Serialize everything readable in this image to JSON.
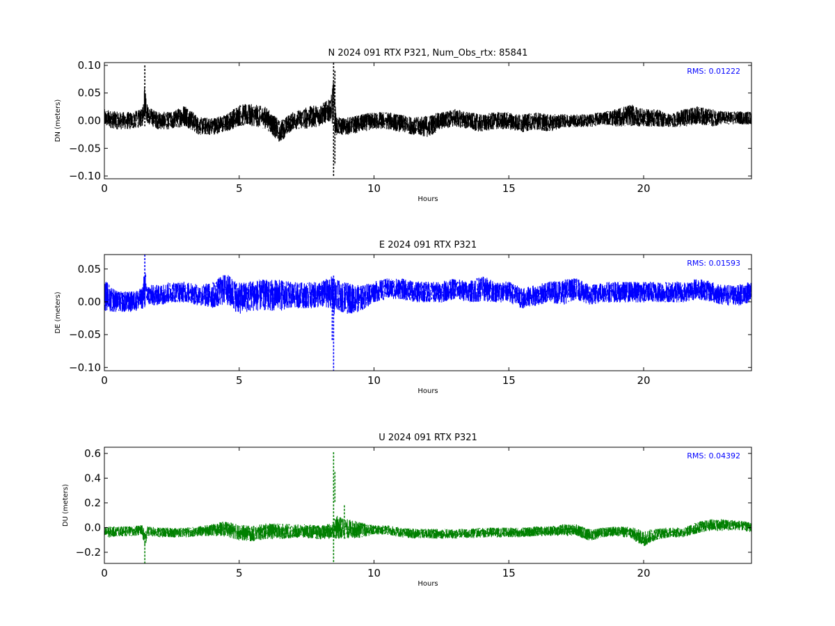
{
  "chart_data": [
    {
      "type": "line",
      "title": "N 2024 091 RTX  P321, Num_Obs_rtx: 85841",
      "xlabel": "Hours",
      "ylabel": "DN (meters)",
      "xlim": [
        0,
        24
      ],
      "ylim": [
        -0.105,
        0.105
      ],
      "xticks": [
        0,
        5,
        10,
        15,
        20
      ],
      "xtick_labels": [
        "0",
        "5",
        "10",
        "15",
        "20"
      ],
      "yticks": [
        -0.1,
        -0.05,
        0.0,
        0.05,
        0.1
      ],
      "ytick_labels": [
        "−0.10",
        "−0.05",
        "0.00",
        "0.05",
        "0.10"
      ],
      "color": "#000000",
      "rms_text": "RMS:  0.01222",
      "rms_color": "#0000ff",
      "grid": false,
      "series": [
        {
          "x": [
            0,
            0.5,
            1.0,
            1.4,
            1.5,
            1.6,
            2.0,
            2.5,
            3.0,
            3.5,
            4.0,
            4.5,
            5.0,
            5.5,
            6.0,
            6.5,
            7.0,
            7.5,
            8.0,
            8.4,
            8.5,
            8.6,
            9.0,
            9.5,
            10.0,
            10.5,
            11.0,
            11.5,
            12.0,
            12.5,
            13.0,
            13.5,
            14.0,
            14.5,
            15.0,
            15.5,
            16.0,
            16.5,
            17.0,
            17.5,
            18.0,
            18.5,
            19.0,
            19.5,
            20.0,
            20.5,
            21.0,
            21.5,
            22.0,
            22.5,
            23.0,
            23.5,
            24.0
          ],
          "y": [
            0.005,
            0.0,
            0.0,
            0.005,
            0.04,
            0.01,
            0.0,
            0.0,
            0.01,
            -0.01,
            -0.01,
            -0.005,
            0.01,
            0.01,
            0.005,
            -0.02,
            0.0,
            0.005,
            0.01,
            0.02,
            0.03,
            -0.01,
            -0.01,
            -0.005,
            0.0,
            0.0,
            -0.005,
            -0.01,
            -0.01,
            0.0,
            0.005,
            0.0,
            -0.005,
            0.0,
            0.0,
            -0.005,
            0.0,
            -0.005,
            0.0,
            0.0,
            0.0,
            0.005,
            0.005,
            0.01,
            0.005,
            0.005,
            0.0,
            0.005,
            0.01,
            0.005,
            0.005,
            0.005,
            0.005
          ],
          "spread": [
            0.02,
            0.02,
            0.02,
            0.02,
            0.04,
            0.02,
            0.02,
            0.02,
            0.025,
            0.02,
            0.02,
            0.02,
            0.025,
            0.025,
            0.025,
            0.025,
            0.02,
            0.025,
            0.025,
            0.025,
            0.06,
            0.02,
            0.02,
            0.02,
            0.02,
            0.02,
            0.02,
            0.02,
            0.025,
            0.02,
            0.02,
            0.02,
            0.02,
            0.02,
            0.02,
            0.02,
            0.02,
            0.02,
            0.015,
            0.015,
            0.015,
            0.015,
            0.02,
            0.025,
            0.02,
            0.02,
            0.015,
            0.02,
            0.02,
            0.02,
            0.015,
            0.015,
            0.015
          ],
          "spikes": [
            {
              "x": 1.5,
              "min": -0.01,
              "max": 0.1
            },
            {
              "x": 8.5,
              "min": -0.1,
              "max": 0.105
            },
            {
              "x": 8.55,
              "min": -0.08,
              "max": 0.09
            }
          ]
        }
      ]
    },
    {
      "type": "line",
      "title": "E 2024 091 RTX  P321",
      "xlabel": "Hours",
      "ylabel": "DE (meters)",
      "xlim": [
        0,
        24
      ],
      "ylim": [
        -0.105,
        0.072
      ],
      "xticks": [
        0,
        5,
        10,
        15,
        20
      ],
      "xtick_labels": [
        "0",
        "5",
        "10",
        "15",
        "20"
      ],
      "yticks": [
        -0.1,
        -0.05,
        0.0,
        0.05
      ],
      "ytick_labels": [
        "−0.10",
        "−0.05",
        "0.00",
        "0.05"
      ],
      "color": "#0000ff",
      "rms_text": "RMS:  0.01593",
      "rms_color": "#0000ff",
      "grid": false,
      "series": [
        {
          "x": [
            0,
            0.5,
            1.0,
            1.4,
            1.5,
            1.6,
            2.0,
            2.5,
            3.0,
            3.5,
            4.0,
            4.5,
            5.0,
            5.5,
            6.0,
            6.5,
            7.0,
            7.5,
            8.0,
            8.4,
            8.5,
            8.6,
            9.0,
            9.5,
            10.0,
            10.5,
            11.0,
            11.5,
            12.0,
            12.5,
            13.0,
            13.5,
            14.0,
            14.5,
            15.0,
            15.5,
            16.0,
            16.5,
            17.0,
            17.5,
            18.0,
            18.5,
            19.0,
            19.5,
            20.0,
            20.5,
            21.0,
            21.5,
            22.0,
            22.5,
            23.0,
            23.5,
            24.0
          ],
          "y": [
            0.01,
            0.0,
            0.0,
            0.005,
            0.02,
            0.01,
            0.01,
            0.015,
            0.015,
            0.01,
            0.01,
            0.02,
            0.005,
            0.01,
            0.01,
            0.01,
            0.01,
            0.01,
            0.01,
            0.015,
            0.005,
            0.01,
            0.005,
            0.005,
            0.015,
            0.02,
            0.02,
            0.015,
            0.015,
            0.015,
            0.02,
            0.015,
            0.02,
            0.015,
            0.015,
            0.005,
            0.01,
            0.015,
            0.015,
            0.02,
            0.01,
            0.015,
            0.015,
            0.015,
            0.015,
            0.015,
            0.015,
            0.015,
            0.02,
            0.015,
            0.01,
            0.01,
            0.015
          ],
          "spread": [
            0.03,
            0.02,
            0.02,
            0.02,
            0.04,
            0.02,
            0.02,
            0.02,
            0.02,
            0.02,
            0.025,
            0.03,
            0.03,
            0.03,
            0.03,
            0.03,
            0.025,
            0.025,
            0.025,
            0.03,
            0.04,
            0.03,
            0.03,
            0.025,
            0.02,
            0.02,
            0.02,
            0.02,
            0.02,
            0.02,
            0.02,
            0.02,
            0.025,
            0.02,
            0.02,
            0.02,
            0.02,
            0.02,
            0.025,
            0.02,
            0.02,
            0.02,
            0.02,
            0.02,
            0.02,
            0.02,
            0.02,
            0.02,
            0.02,
            0.02,
            0.02,
            0.02,
            0.02
          ],
          "spikes": [
            {
              "x": 1.5,
              "min": 0.0,
              "max": 0.072
            },
            {
              "x": 8.5,
              "min": -0.105,
              "max": 0.04
            },
            {
              "x": 8.45,
              "min": -0.06,
              "max": 0.035
            }
          ]
        }
      ]
    },
    {
      "type": "line",
      "title": "U 2024 091 RTX  P321",
      "xlabel": "Hours",
      "ylabel": "DU (meters)",
      "xlim": [
        0,
        24
      ],
      "ylim": [
        -0.29,
        0.65
      ],
      "xticks": [
        0,
        5,
        10,
        15,
        20
      ],
      "xtick_labels": [
        "0",
        "5",
        "10",
        "15",
        "20"
      ],
      "yticks": [
        -0.2,
        0.0,
        0.2,
        0.4,
        0.6
      ],
      "ytick_labels": [
        "−0.2",
        "0.0",
        "0.2",
        "0.4",
        "0.6"
      ],
      "color": "#008000",
      "rms_text": "RMS:  0.04392",
      "rms_color": "#0000ff",
      "grid": false,
      "series": [
        {
          "x": [
            0,
            0.5,
            1.0,
            1.4,
            1.5,
            1.6,
            2.0,
            2.5,
            3.0,
            3.5,
            4.0,
            4.5,
            5.0,
            5.5,
            6.0,
            6.5,
            7.0,
            7.5,
            8.0,
            8.4,
            8.5,
            8.6,
            9.0,
            9.5,
            10.0,
            10.5,
            11.0,
            11.5,
            12.0,
            12.5,
            13.0,
            13.5,
            14.0,
            14.5,
            15.0,
            15.5,
            16.0,
            16.5,
            17.0,
            17.5,
            18.0,
            18.5,
            19.0,
            19.5,
            20.0,
            20.5,
            21.0,
            21.5,
            22.0,
            22.5,
            23.0,
            23.5,
            24.0
          ],
          "y": [
            -0.04,
            -0.03,
            -0.03,
            -0.02,
            -0.1,
            -0.03,
            -0.04,
            -0.04,
            -0.04,
            -0.03,
            -0.02,
            -0.01,
            -0.04,
            -0.05,
            -0.03,
            -0.03,
            -0.03,
            -0.03,
            -0.04,
            -0.03,
            0.0,
            0.0,
            -0.01,
            -0.02,
            -0.02,
            -0.02,
            -0.04,
            -0.05,
            -0.05,
            -0.05,
            -0.05,
            -0.05,
            -0.04,
            -0.04,
            -0.04,
            -0.04,
            -0.03,
            -0.03,
            -0.02,
            -0.02,
            -0.06,
            -0.04,
            -0.03,
            -0.04,
            -0.09,
            -0.05,
            -0.04,
            -0.04,
            0.0,
            0.02,
            0.02,
            0.02,
            0.0
          ],
          "spread": [
            0.06,
            0.05,
            0.05,
            0.05,
            0.1,
            0.05,
            0.05,
            0.05,
            0.05,
            0.05,
            0.06,
            0.08,
            0.08,
            0.08,
            0.08,
            0.08,
            0.07,
            0.07,
            0.07,
            0.08,
            0.1,
            0.12,
            0.1,
            0.08,
            0.05,
            0.05,
            0.05,
            0.05,
            0.05,
            0.05,
            0.05,
            0.05,
            0.05,
            0.05,
            0.05,
            0.05,
            0.05,
            0.05,
            0.06,
            0.06,
            0.06,
            0.05,
            0.05,
            0.06,
            0.08,
            0.06,
            0.05,
            0.05,
            0.06,
            0.06,
            0.06,
            0.05,
            0.05
          ],
          "spikes": [
            {
              "x": 1.5,
              "min": -0.29,
              "max": -0.05
            },
            {
              "x": 8.5,
              "min": -0.29,
              "max": 0.61
            },
            {
              "x": 8.55,
              "min": 0.2,
              "max": 0.45
            },
            {
              "x": 8.9,
              "min": -0.1,
              "max": 0.18
            }
          ]
        }
      ]
    }
  ]
}
